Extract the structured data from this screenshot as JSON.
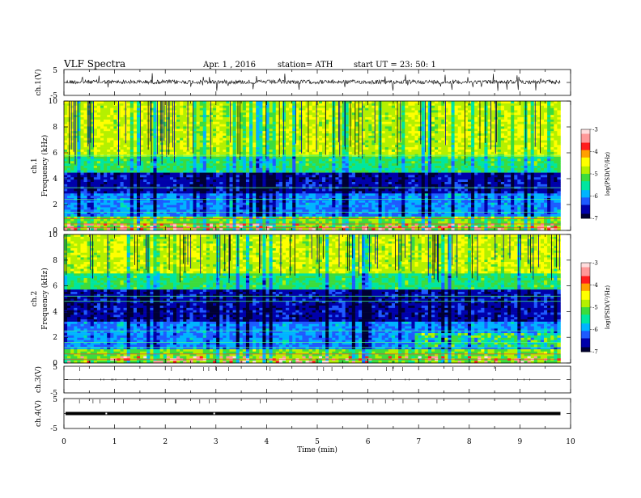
{
  "header": {
    "title": "VLF  Spectra",
    "date": "Apr. 1  , 2016",
    "station": "station= ATH",
    "start": "start  UT =   23: 50: 1"
  },
  "chart_data": {
    "type": "heatmap",
    "x": {
      "label": "Time  (min)",
      "range": [
        0,
        10
      ],
      "ticks": [
        "0",
        "1",
        "2",
        "3",
        "4",
        "5",
        "6",
        "7",
        "8",
        "9",
        "10"
      ],
      "data_end": 9.8
    },
    "panels": [
      {
        "id": "ch1-wave",
        "ylabel": "ch.1(V)",
        "ylim": [
          -5,
          5
        ],
        "yticks": [
          "5",
          "-5"
        ],
        "baseline": 0.2
      },
      {
        "id": "ch1-spectrogram",
        "ylabel": "ch.1",
        "ylabel2": "Frequency  (kHz)",
        "ylim": [
          0,
          10
        ],
        "yticks": [
          "10",
          "8",
          "6",
          "4",
          "2",
          "0"
        ],
        "dark_band_khz": [
          2.8,
          4.5
        ],
        "colorbar": {
          "label": "log(PSD(V²/Hz)",
          "range": [
            -7,
            -3
          ],
          "ticks": [
            "-3",
            "-4",
            "-5",
            "-6",
            "-7"
          ]
        }
      },
      {
        "id": "ch2-spectrogram",
        "ylabel": "ch.2",
        "ylabel2": "Frequency  (kHz)",
        "ylim": [
          0,
          10
        ],
        "yticks": [
          "10",
          "8",
          "6",
          "4",
          "2",
          "0"
        ],
        "dark_band_khz": [
          3.2,
          5.7
        ],
        "colorbar": {
          "label": "log(PSD(V²/Hz)",
          "range": [
            -7,
            -3
          ],
          "ticks": [
            "-3",
            "-4",
            "-5",
            "-6",
            "-7"
          ]
        }
      },
      {
        "id": "ch3-wave",
        "ylabel": "ch.3(V)",
        "ylim": [
          -5,
          5
        ],
        "yticks": [
          "5",
          "-5"
        ],
        "baseline": 0.0
      },
      {
        "id": "ch4-wave",
        "ylabel": "ch.4(V)",
        "ylim": [
          -5,
          5
        ],
        "yticks": [
          "5",
          "-5"
        ],
        "baseline": 0.0
      }
    ],
    "colormap": [
      "#000033",
      "#0000aa",
      "#1e5aff",
      "#00b4ff",
      "#00e6a0",
      "#3cdc3c",
      "#b4f000",
      "#ffff00",
      "#ffa000",
      "#ff1e1e",
      "#ff9999",
      "#ffdddd"
    ]
  }
}
